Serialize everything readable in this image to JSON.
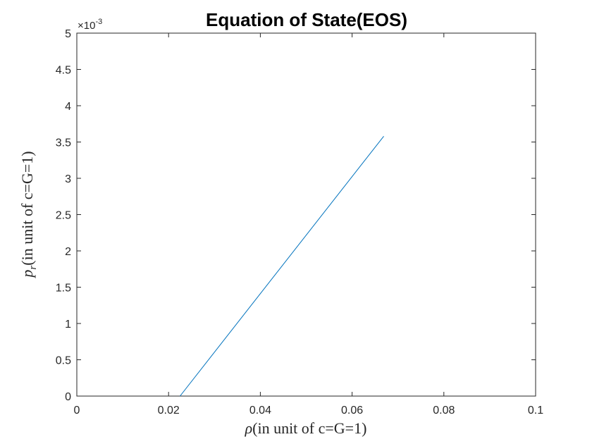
{
  "chart_data": {
    "type": "line",
    "title": "Equation of State(EOS)",
    "xlabel": {
      "symbol": "ρ",
      "text": "(in unit of c=G=1)"
    },
    "ylabel": {
      "symbol": "p",
      "subscript": "r",
      "text": "(in unit of c=G=1)"
    },
    "xlim": [
      0,
      0.1
    ],
    "ylim": [
      0,
      0.005
    ],
    "y_multiplier": {
      "prefix": "×10",
      "exponent": "-3"
    },
    "xticks": [
      0,
      0.02,
      0.04,
      0.06,
      0.08,
      0.1
    ],
    "xtick_labels": [
      "0",
      "0.02",
      "0.04",
      "0.06",
      "0.08",
      "0.1"
    ],
    "yticks": [
      0,
      0.0005,
      0.001,
      0.0015,
      0.002,
      0.0025,
      0.003,
      0.0035,
      0.004,
      0.0045,
      0.005
    ],
    "ytick_labels": [
      "0",
      "0.5",
      "1",
      "1.5",
      "2",
      "2.5",
      "3",
      "3.5",
      "4",
      "4.5",
      "5"
    ],
    "grid": false,
    "series": [
      {
        "color": "#0072BD",
        "x": [
          0.0225,
          0.0669
        ],
        "y": [
          0,
          0.00358
        ]
      }
    ]
  }
}
